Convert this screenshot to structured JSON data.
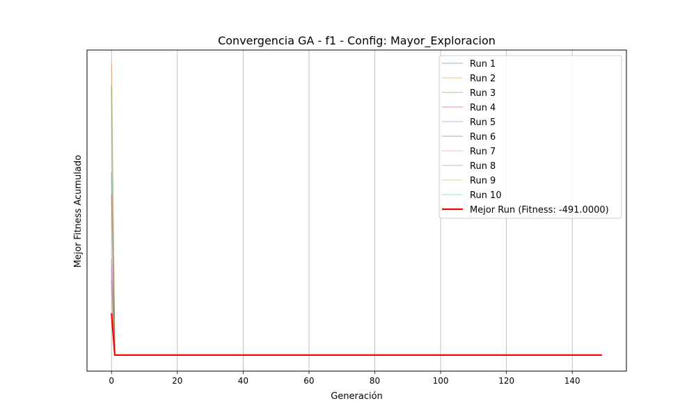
{
  "chart_data": {
    "type": "line",
    "title": "Convergencia GA - f1 - Config: Mayor_Exploracion",
    "xlabel": "Generación",
    "ylabel": "Mejor Fitness Acumulado",
    "xlim": [
      -7.45,
      156.45
    ],
    "ylim": [
      0,
      1
    ],
    "xticks": [
      0,
      20,
      40,
      60,
      80,
      100,
      120,
      140
    ],
    "grid": "vertical",
    "legend_position": "top-right",
    "series": [
      {
        "name": "Run 1",
        "color": "#1f77b4",
        "alpha": 0.35,
        "lw": 1.5,
        "x": [
          0,
          1,
          149
        ],
        "y": [
          0.62,
          0.05,
          0.05
        ]
      },
      {
        "name": "Run 2",
        "color": "#ff7f0e",
        "alpha": 0.35,
        "lw": 1.5,
        "x": [
          0,
          1,
          149
        ],
        "y": [
          0.96,
          0.05,
          0.05
        ]
      },
      {
        "name": "Run 3",
        "color": "#2ca02c",
        "alpha": 0.35,
        "lw": 1.5,
        "x": [
          0,
          1,
          149
        ],
        "y": [
          0.89,
          0.05,
          0.05
        ]
      },
      {
        "name": "Run 4",
        "color": "#d62728",
        "alpha": 0.35,
        "lw": 1.5,
        "x": [
          0,
          1,
          149
        ],
        "y": [
          0.55,
          0.05,
          0.05
        ]
      },
      {
        "name": "Run 5",
        "color": "#9467bd",
        "alpha": 0.35,
        "lw": 1.5,
        "x": [
          0,
          1,
          149
        ],
        "y": [
          0.33,
          0.05,
          0.05
        ]
      },
      {
        "name": "Run 6",
        "color": "#8c564b",
        "alpha": 0.35,
        "lw": 1.5,
        "x": [
          0,
          1,
          149
        ],
        "y": [
          0.28,
          0.05,
          0.05
        ]
      },
      {
        "name": "Run 7",
        "color": "#e377c2",
        "alpha": 0.35,
        "lw": 1.5,
        "x": [
          0,
          1,
          149
        ],
        "y": [
          0.3,
          0.05,
          0.05
        ]
      },
      {
        "name": "Run 8",
        "color": "#7f7f7f",
        "alpha": 0.35,
        "lw": 1.5,
        "x": [
          0,
          1,
          149
        ],
        "y": [
          0.35,
          0.05,
          0.05
        ]
      },
      {
        "name": "Run 9",
        "color": "#bcbd22",
        "alpha": 0.35,
        "lw": 1.5,
        "x": [
          0,
          1,
          149
        ],
        "y": [
          0.22,
          0.05,
          0.05
        ]
      },
      {
        "name": "Run 10",
        "color": "#17becf",
        "alpha": 0.35,
        "lw": 1.5,
        "x": [
          0,
          1,
          149
        ],
        "y": [
          0.18,
          0.05,
          0.05
        ]
      },
      {
        "name": "Mejor Run (Fitness: -491.0000)",
        "color": "#ff0000",
        "alpha": 1,
        "lw": 2.2,
        "x": [
          0,
          1,
          149
        ],
        "y": [
          0.18,
          0.05,
          0.05
        ]
      }
    ]
  }
}
